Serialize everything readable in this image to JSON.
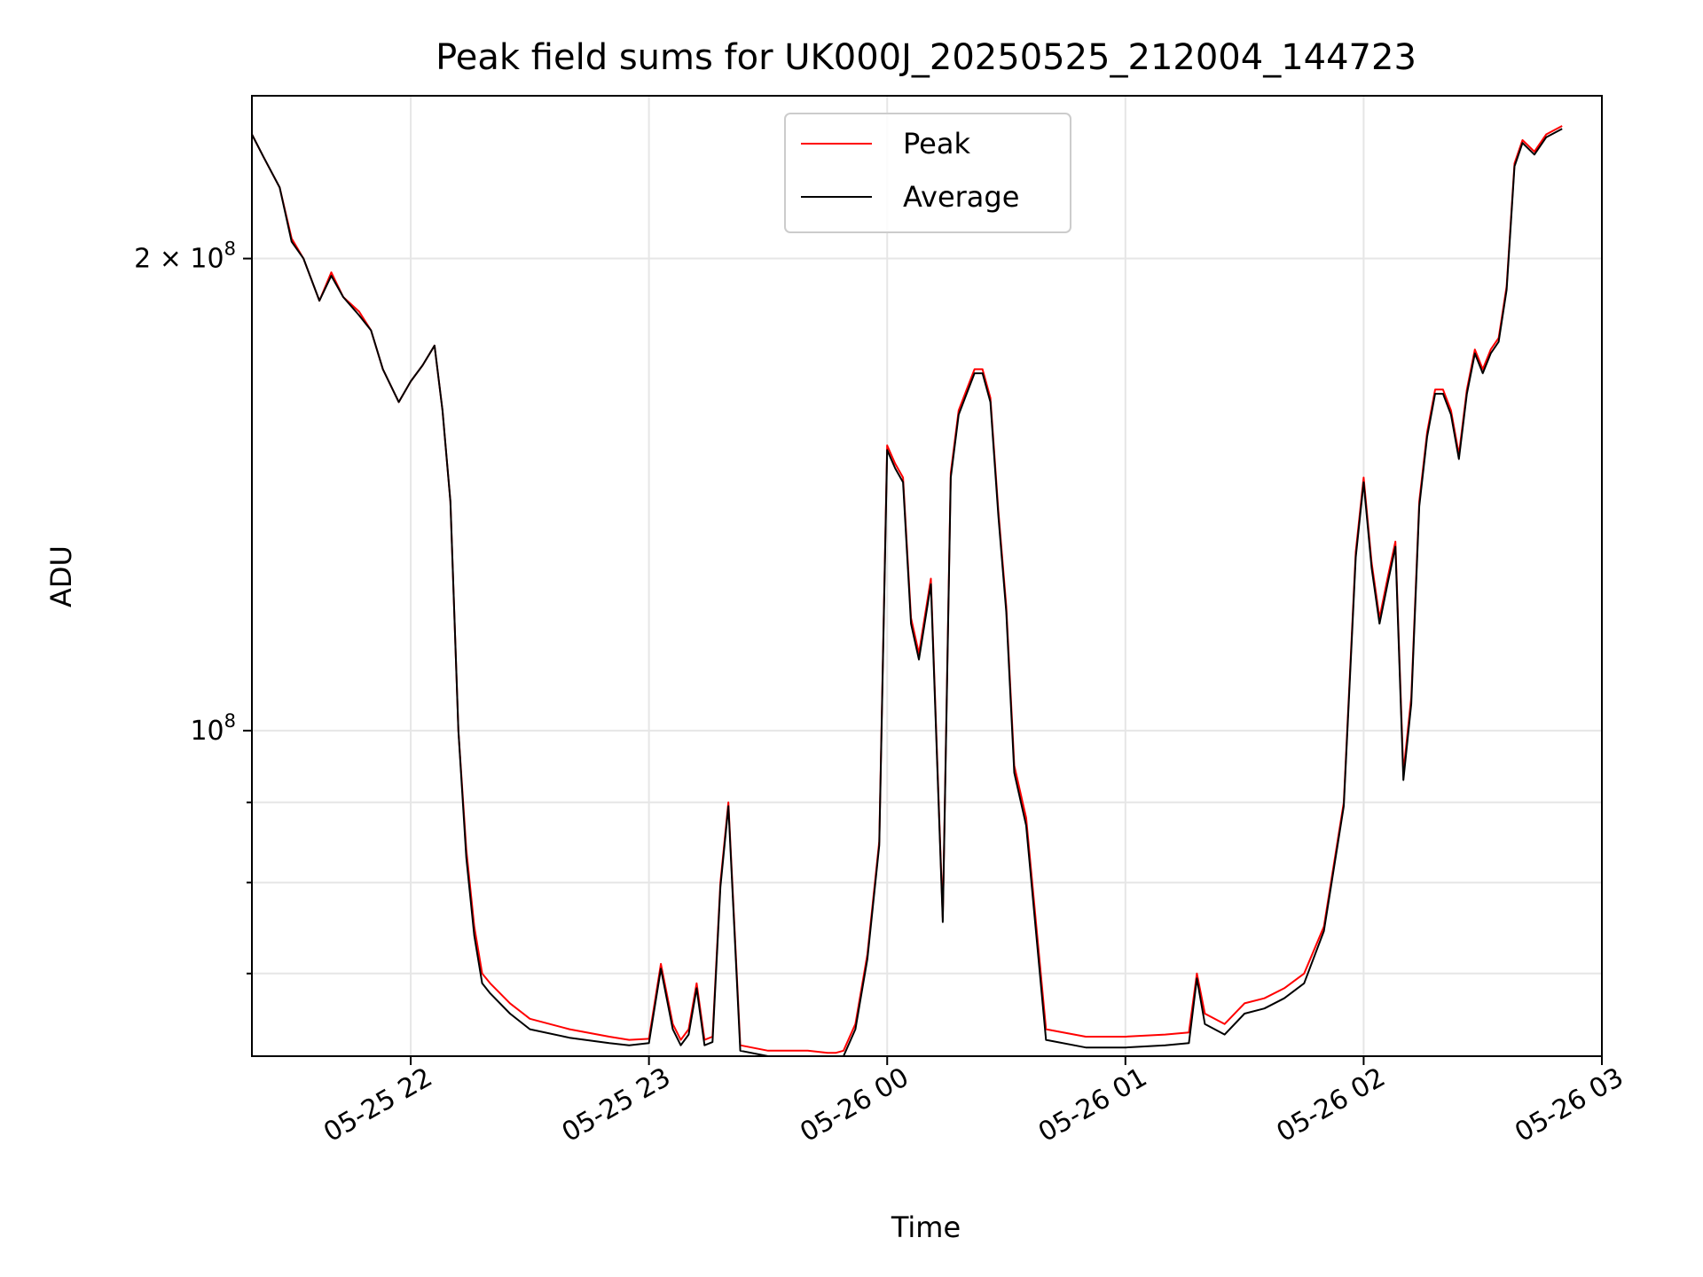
{
  "chart_data": {
    "type": "line",
    "title": "Peak field sums for UK000J_20250525_212004_144723",
    "xlabel": "Time",
    "ylabel": "ADU",
    "yscale": "log",
    "ylim": [
      62000000,
      254000000
    ],
    "xlim": [
      "2025-05-25 21:20",
      "2025-05-26 03:00"
    ],
    "x_ticks": [
      {
        "t": "2025-05-25 22:00",
        "label": "05-25 22"
      },
      {
        "t": "2025-05-25 23:00",
        "label": "05-25 23"
      },
      {
        "t": "2025-05-26 00:00",
        "label": "05-26 00"
      },
      {
        "t": "2025-05-26 01:00",
        "label": "05-26 01"
      },
      {
        "t": "2025-05-26 02:00",
        "label": "05-26 02"
      },
      {
        "t": "2025-05-26 03:00",
        "label": "05-26 03"
      }
    ],
    "y_major_ticks": [
      {
        "value": 100000000,
        "base": "10",
        "exp": "8",
        "mult": ""
      },
      {
        "value": 200000000,
        "base": "10",
        "exp": "8",
        "mult": "2 × "
      }
    ],
    "y_minor_ticks": [
      70000000,
      80000000,
      90000000
    ],
    "grid": true,
    "legend_position": "top-center",
    "series": [
      {
        "name": "Peak",
        "color": "#ff0000",
        "x": [
          "2025-05-25 21:20",
          "2025-05-25 21:23",
          "2025-05-25 21:27",
          "2025-05-25 21:30",
          "2025-05-25 21:33",
          "2025-05-25 21:37",
          "2025-05-25 21:40",
          "2025-05-25 21:43",
          "2025-05-25 21:47",
          "2025-05-25 21:50",
          "2025-05-25 21:53",
          "2025-05-25 21:57",
          "2025-05-25 22:00",
          "2025-05-25 22:03",
          "2025-05-25 22:06",
          "2025-05-25 22:08",
          "2025-05-25 22:10",
          "2025-05-25 22:12",
          "2025-05-25 22:14",
          "2025-05-25 22:16",
          "2025-05-25 22:18",
          "2025-05-25 22:20",
          "2025-05-25 22:25",
          "2025-05-25 22:30",
          "2025-05-25 22:40",
          "2025-05-25 22:50",
          "2025-05-25 22:55",
          "2025-05-25 23:00",
          "2025-05-25 23:03",
          "2025-05-25 23:06",
          "2025-05-25 23:08",
          "2025-05-25 23:10",
          "2025-05-25 23:12",
          "2025-05-25 23:14",
          "2025-05-25 23:16",
          "2025-05-25 23:18",
          "2025-05-25 23:20",
          "2025-05-25 23:23",
          "2025-05-25 23:30",
          "2025-05-25 23:40",
          "2025-05-25 23:45",
          "2025-05-25 23:47",
          "2025-05-25 23:49",
          "2025-05-25 23:52",
          "2025-05-25 23:55",
          "2025-05-25 23:58",
          "2025-05-26 00:00",
          "2025-05-26 00:02",
          "2025-05-26 00:04",
          "2025-05-26 00:06",
          "2025-05-26 00:08",
          "2025-05-26 00:11",
          "2025-05-26 00:14",
          "2025-05-26 00:16",
          "2025-05-26 00:18",
          "2025-05-26 00:20",
          "2025-05-26 00:22",
          "2025-05-26 00:24",
          "2025-05-26 00:26",
          "2025-05-26 00:28",
          "2025-05-26 00:30",
          "2025-05-26 00:32",
          "2025-05-26 00:35",
          "2025-05-26 00:40",
          "2025-05-26 00:50",
          "2025-05-26 01:00",
          "2025-05-26 01:10",
          "2025-05-26 01:16",
          "2025-05-26 01:18",
          "2025-05-26 01:20",
          "2025-05-26 01:25",
          "2025-05-26 01:30",
          "2025-05-26 01:35",
          "2025-05-26 01:40",
          "2025-05-26 01:45",
          "2025-05-26 01:50",
          "2025-05-26 01:55",
          "2025-05-26 01:58",
          "2025-05-26 02:00",
          "2025-05-26 02:02",
          "2025-05-26 02:04",
          "2025-05-26 02:06",
          "2025-05-26 02:08",
          "2025-05-26 02:10",
          "2025-05-26 02:12",
          "2025-05-26 02:14",
          "2025-05-26 02:16",
          "2025-05-26 02:18",
          "2025-05-26 02:20",
          "2025-05-26 02:22",
          "2025-05-26 02:24",
          "2025-05-26 02:26",
          "2025-05-26 02:28",
          "2025-05-26 02:30",
          "2025-05-26 02:32",
          "2025-05-26 02:34",
          "2025-05-26 02:36",
          "2025-05-26 02:38",
          "2025-05-26 02:40",
          "2025-05-26 02:43",
          "2025-05-26 02:46",
          "2025-05-26 02:50"
        ],
        "y": [
          240000000,
          232000000,
          222000000,
          206000000,
          200000000,
          188000000,
          196000000,
          189000000,
          185000000,
          180000000,
          170000000,
          162000000,
          167000000,
          171000000,
          176000000,
          160000000,
          140000000,
          100000000,
          84000000,
          75000000,
          70000000,
          69000000,
          67000000,
          65500000,
          64500000,
          63800000,
          63500000,
          63600000,
          71000000,
          65000000,
          63500000,
          64500000,
          69000000,
          63500000,
          63800000,
          80000000,
          90000000,
          63000000,
          62500000,
          62500000,
          62300000,
          62300000,
          62500000,
          65000000,
          72000000,
          85000000,
          152000000,
          148000000,
          145000000,
          118000000,
          112000000,
          125000000,
          76000000,
          146000000,
          160000000,
          165000000,
          170000000,
          170000000,
          163000000,
          138000000,
          120000000,
          95000000,
          88000000,
          64500000,
          63800000,
          63800000,
          64000000,
          64200000,
          70000000,
          66000000,
          65000000,
          67000000,
          67500000,
          68500000,
          70000000,
          75000000,
          90000000,
          130000000,
          145000000,
          128000000,
          118000000,
          125000000,
          132000000,
          94000000,
          105000000,
          140000000,
          155000000,
          165000000,
          165000000,
          160000000,
          150000000,
          165000000,
          175000000,
          170000000,
          175000000,
          178000000,
          192000000,
          230000000,
          238000000,
          234000000,
          240000000,
          243000000
        ]
      },
      {
        "name": "Average",
        "color": "#000000",
        "x": [
          "2025-05-25 21:20",
          "2025-05-25 21:23",
          "2025-05-25 21:27",
          "2025-05-25 21:30",
          "2025-05-25 21:33",
          "2025-05-25 21:37",
          "2025-05-25 21:40",
          "2025-05-25 21:43",
          "2025-05-25 21:47",
          "2025-05-25 21:50",
          "2025-05-25 21:53",
          "2025-05-25 21:57",
          "2025-05-25 22:00",
          "2025-05-25 22:03",
          "2025-05-25 22:06",
          "2025-05-25 22:08",
          "2025-05-25 22:10",
          "2025-05-25 22:12",
          "2025-05-25 22:14",
          "2025-05-25 22:16",
          "2025-05-25 22:18",
          "2025-05-25 22:20",
          "2025-05-25 22:25",
          "2025-05-25 22:30",
          "2025-05-25 22:40",
          "2025-05-25 22:50",
          "2025-05-25 22:55",
          "2025-05-25 23:00",
          "2025-05-25 23:03",
          "2025-05-25 23:06",
          "2025-05-25 23:08",
          "2025-05-25 23:10",
          "2025-05-25 23:12",
          "2025-05-25 23:14",
          "2025-05-25 23:16",
          "2025-05-25 23:18",
          "2025-05-25 23:20",
          "2025-05-25 23:23",
          "2025-05-25 23:30",
          "2025-05-25 23:40",
          "2025-05-25 23:45",
          "2025-05-25 23:47",
          "2025-05-25 23:49",
          "2025-05-25 23:52",
          "2025-05-25 23:55",
          "2025-05-25 23:58",
          "2025-05-26 00:00",
          "2025-05-26 00:02",
          "2025-05-26 00:04",
          "2025-05-26 00:06",
          "2025-05-26 00:08",
          "2025-05-26 00:11",
          "2025-05-26 00:14",
          "2025-05-26 00:16",
          "2025-05-26 00:18",
          "2025-05-26 00:20",
          "2025-05-26 00:22",
          "2025-05-26 00:24",
          "2025-05-26 00:26",
          "2025-05-26 00:28",
          "2025-05-26 00:30",
          "2025-05-26 00:32",
          "2025-05-26 00:35",
          "2025-05-26 00:40",
          "2025-05-26 00:50",
          "2025-05-26 01:00",
          "2025-05-26 01:10",
          "2025-05-26 01:16",
          "2025-05-26 01:18",
          "2025-05-26 01:20",
          "2025-05-26 01:25",
          "2025-05-26 01:30",
          "2025-05-26 01:35",
          "2025-05-26 01:40",
          "2025-05-26 01:45",
          "2025-05-26 01:50",
          "2025-05-26 01:55",
          "2025-05-26 01:58",
          "2025-05-26 02:00",
          "2025-05-26 02:02",
          "2025-05-26 02:04",
          "2025-05-26 02:06",
          "2025-05-26 02:08",
          "2025-05-26 02:10",
          "2025-05-26 02:12",
          "2025-05-26 02:14",
          "2025-05-26 02:16",
          "2025-05-26 02:18",
          "2025-05-26 02:20",
          "2025-05-26 02:22",
          "2025-05-26 02:24",
          "2025-05-26 02:26",
          "2025-05-26 02:28",
          "2025-05-26 02:30",
          "2025-05-26 02:32",
          "2025-05-26 02:34",
          "2025-05-26 02:36",
          "2025-05-26 02:38",
          "2025-05-26 02:40",
          "2025-05-26 02:43",
          "2025-05-26 02:46",
          "2025-05-26 02:50"
        ],
        "y": [
          240000000,
          232000000,
          222000000,
          205000000,
          200000000,
          188000000,
          195000000,
          189000000,
          184000000,
          180000000,
          170000000,
          162000000,
          167000000,
          171000000,
          176000000,
          160000000,
          140000000,
          100000000,
          83000000,
          74000000,
          69000000,
          68000000,
          66000000,
          64500000,
          63700000,
          63200000,
          63000000,
          63200000,
          70500000,
          64500000,
          63000000,
          64000000,
          68500000,
          63000000,
          63300000,
          79500000,
          89500000,
          62500000,
          62000000,
          62000000,
          61800000,
          61800000,
          62000000,
          64500000,
          71500000,
          84500000,
          151000000,
          147000000,
          144000000,
          117000000,
          111000000,
          124000000,
          75500000,
          145000000,
          159000000,
          164000000,
          169000000,
          169000000,
          162000000,
          137000000,
          119000000,
          94000000,
          87000000,
          63500000,
          62800000,
          62800000,
          63000000,
          63200000,
          69500000,
          65000000,
          64000000,
          66000000,
          66500000,
          67500000,
          69000000,
          74500000,
          89500000,
          129000000,
          144000000,
          127000000,
          117000000,
          124000000,
          131000000,
          93000000,
          104000000,
          139000000,
          154000000,
          164000000,
          164000000,
          159000000,
          149000000,
          164000000,
          174000000,
          169000000,
          174000000,
          177000000,
          191000000,
          229000000,
          237000000,
          233000000,
          239000000,
          242000000
        ]
      }
    ]
  }
}
